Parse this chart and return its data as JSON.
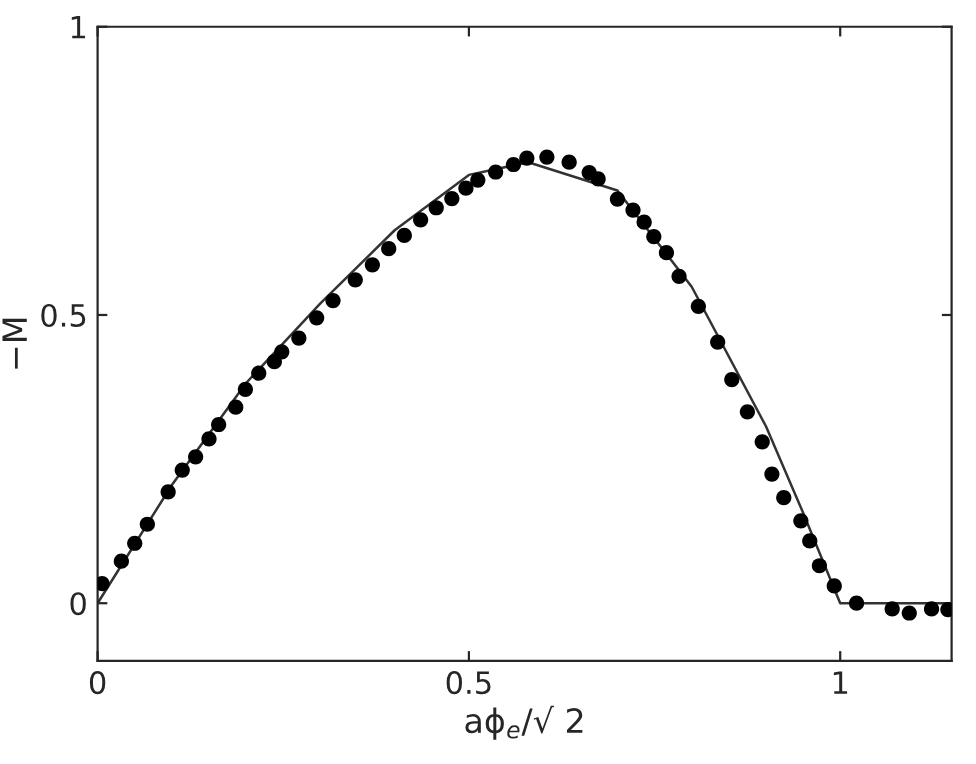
{
  "chart_data": {
    "type": "scatter",
    "xlabel": "aϕ$_{e}$/√ 2",
    "ylabel": "−M",
    "xlim": [
      0,
      1.15
    ],
    "ylim": [
      -0.1,
      1
    ],
    "xticks": [
      0,
      0.5,
      1
    ],
    "yticks": [
      0,
      0.5,
      1
    ],
    "grid": false,
    "series": [
      {
        "marker": "circle",
        "color": "#000000",
        "x": [
          0.006,
          0.032,
          0.05,
          0.067,
          0.095,
          0.114,
          0.132,
          0.15,
          0.163,
          0.186,
          0.199,
          0.217,
          0.238,
          0.248,
          0.271,
          0.295,
          0.317,
          0.347,
          0.37,
          0.392,
          0.413,
          0.435,
          0.456,
          0.477,
          0.496,
          0.512,
          0.536,
          0.56,
          0.578,
          0.605,
          0.635,
          0.662,
          0.674,
          0.7,
          0.721,
          0.736,
          0.749,
          0.766,
          0.783,
          0.809,
          0.835,
          0.854,
          0.875,
          0.895,
          0.908,
          0.924,
          0.947,
          0.959,
          0.972,
          0.992,
          1.022,
          1.07,
          1.093,
          1.123,
          1.145
        ],
        "values": [
          0.034,
          0.073,
          0.104,
          0.137,
          0.193,
          0.231,
          0.254,
          0.285,
          0.31,
          0.34,
          0.371,
          0.399,
          0.419,
          0.436,
          0.46,
          0.495,
          0.525,
          0.561,
          0.587,
          0.615,
          0.638,
          0.665,
          0.686,
          0.702,
          0.72,
          0.734,
          0.748,
          0.761,
          0.772,
          0.774,
          0.765,
          0.747,
          0.736,
          0.701,
          0.682,
          0.661,
          0.636,
          0.608,
          0.567,
          0.515,
          0.453,
          0.388,
          0.332,
          0.28,
          0.224,
          0.183,
          0.143,
          0.108,
          0.065,
          0.03,
          0.0,
          -0.01,
          -0.017,
          -0.01,
          -0.011
        ]
      },
      {
        "type": "line",
        "marker": "none",
        "color": "#333333",
        "x": [
          0,
          0.1,
          0.2,
          0.3,
          0.4,
          0.5,
          0.58,
          0.7,
          0.8,
          0.9,
          0.95,
          1.0,
          1.15
        ],
        "values": [
          0.0,
          0.205,
          0.382,
          0.52,
          0.647,
          0.743,
          0.765,
          0.716,
          0.549,
          0.307,
          0.157,
          0.0,
          0.0
        ]
      }
    ]
  }
}
